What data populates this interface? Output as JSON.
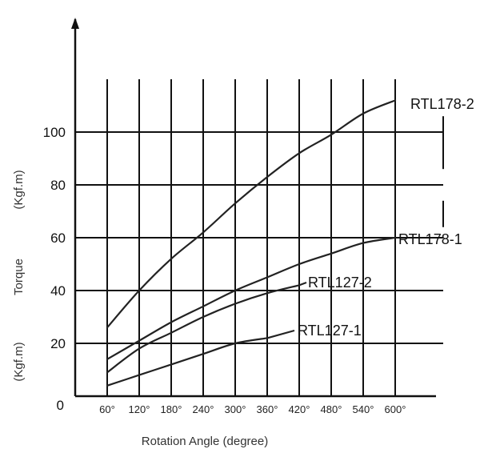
{
  "chart_data": {
    "type": "line",
    "xlabel": "Rotation Angle (degree)",
    "ylabel_parts": [
      "(Kgf.m)",
      "Torque",
      "(Kgf.m)"
    ],
    "x_ticks": [
      "60°",
      "120°",
      "180°",
      "240°",
      "300°",
      "360°",
      "420°",
      "480°",
      "540°",
      "600°"
    ],
    "y_ticks": [
      "0",
      "20",
      "40",
      "60",
      "80",
      "100"
    ],
    "origin_label": "0",
    "xlim": [
      0,
      690
    ],
    "ylim": [
      0,
      120
    ],
    "grid": true,
    "series": [
      {
        "name": "RTL178-2",
        "x": [
          60,
          120,
          180,
          240,
          300,
          360,
          420,
          480,
          540,
          600
        ],
        "y": [
          26,
          40,
          52,
          62,
          73,
          83,
          92,
          99,
          107,
          112
        ]
      },
      {
        "name": "RTL178-1",
        "x": [
          60,
          120,
          180,
          240,
          300,
          360,
          420,
          480,
          540,
          600
        ],
        "y": [
          14,
          21,
          28,
          34,
          40,
          45,
          50,
          54,
          58,
          60
        ]
      },
      {
        "name": "RTL127-2",
        "x": [
          60,
          120,
          180,
          240,
          300,
          360,
          420
        ],
        "y": [
          9,
          18,
          24,
          30,
          35,
          39,
          42
        ]
      },
      {
        "name": "RTL127-1",
        "x": [
          60,
          120,
          180,
          240,
          300,
          360
        ],
        "y": [
          4,
          8,
          12,
          16,
          20,
          22
        ]
      }
    ]
  }
}
